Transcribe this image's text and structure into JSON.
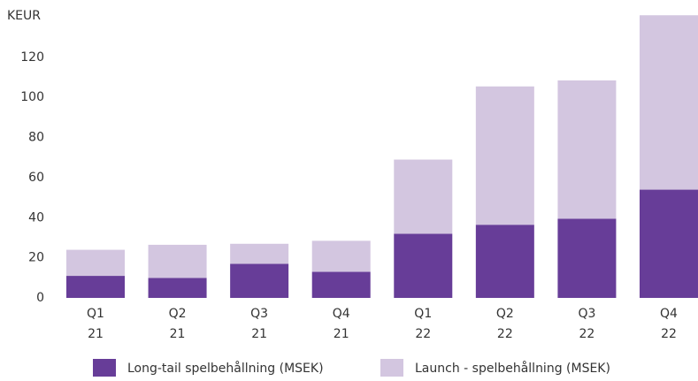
{
  "chart_data": {
    "type": "stacked_bar",
    "y_axis_label": "KEUR",
    "categories": [
      [
        "Q1",
        "21"
      ],
      [
        "Q2",
        "21"
      ],
      [
        "Q3",
        "21"
      ],
      [
        "Q4",
        "21"
      ],
      [
        "Q1",
        "22"
      ],
      [
        "Q2",
        "22"
      ],
      [
        "Q3",
        "22"
      ],
      [
        "Q4",
        "22"
      ]
    ],
    "series": [
      {
        "name": "Long-tail spelbehållning (MSEK)",
        "color": "#673d98",
        "values": [
          11,
          10,
          17,
          13,
          32,
          36.5,
          39.5,
          54
        ]
      },
      {
        "name": "Launch - spelbehållning (MSEK)",
        "color": "#d3c6e0",
        "values": [
          13,
          16.5,
          10,
          15.5,
          37,
          69,
          69,
          87
        ]
      }
    ],
    "ylim": [
      0,
      142
    ],
    "yticks": [
      0,
      20,
      40,
      60,
      80,
      100,
      120
    ],
    "grid": false,
    "legend": "bottom"
  }
}
